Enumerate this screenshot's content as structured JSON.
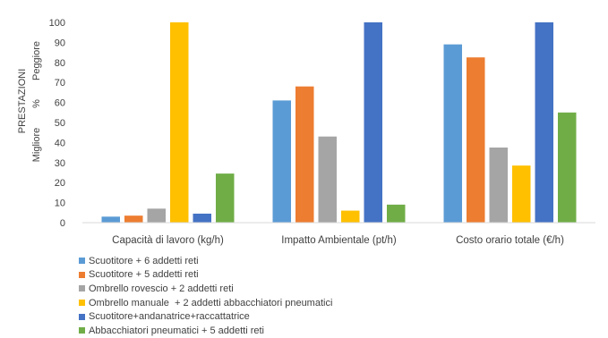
{
  "chart_data": {
    "type": "bar",
    "categories": [
      "Capacità di lavoro (kg/h)",
      "Impatto Ambientale (pt/h)",
      "Costo orario totale (€/h)"
    ],
    "series": [
      {
        "name": "Scuotitore + 6 addetti reti",
        "color": "#5B9BD5",
        "values": [
          3,
          61,
          89
        ]
      },
      {
        "name": "Scuotitore + 5 addetti reti",
        "color": "#ED7D31",
        "values": [
          3.5,
          68,
          82.5
        ]
      },
      {
        "name": "Ombrello rovescio + 2 addetti reti",
        "color": "#A5A5A5",
        "values": [
          7,
          43,
          37.5
        ]
      },
      {
        "name": "Ombrello manuale  + 2 addetti abbacchiatori pneumatici",
        "color": "#FFC000",
        "values": [
          100,
          6,
          28.5
        ]
      },
      {
        "name": "Scuotitore+andanatrice+raccattatrice",
        "color": "#4472C4",
        "values": [
          4.5,
          100,
          100
        ]
      },
      {
        "name": "Abbacchiatori pneumatici + 5 addetti reti",
        "color": "#70AD47",
        "values": [
          24.5,
          9,
          55
        ]
      }
    ],
    "ylim": [
      0,
      100
    ],
    "yticks": [
      0,
      10,
      20,
      30,
      40,
      50,
      60,
      70,
      80,
      90,
      100
    ],
    "ylabel": {
      "title": "PRESTAZIONI",
      "unit": "%",
      "best": "Migliore",
      "worst": "Peggiore"
    },
    "grid": false,
    "legend_position": "bottom-left"
  }
}
